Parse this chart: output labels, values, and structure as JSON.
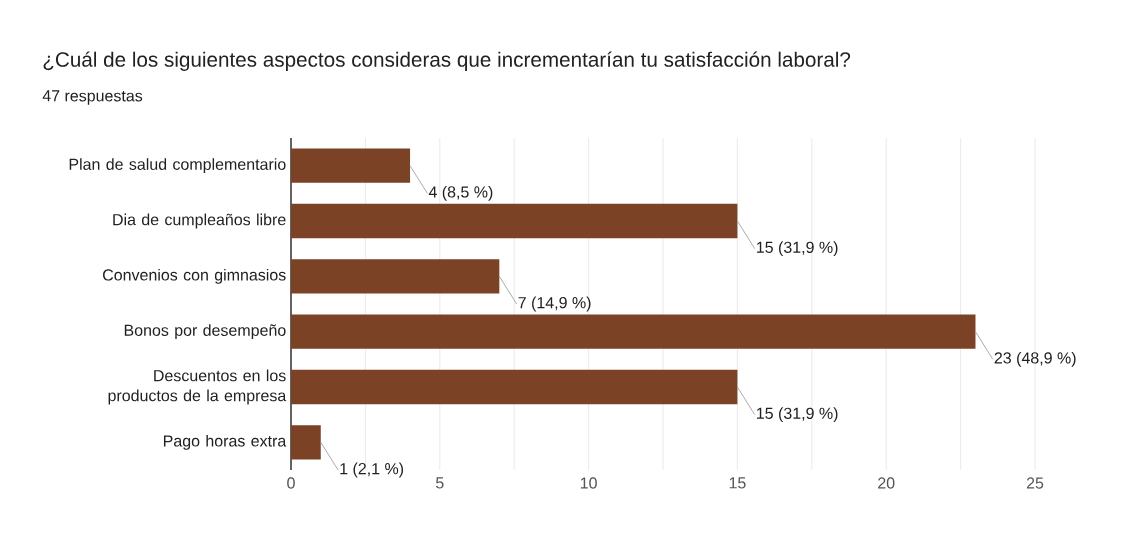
{
  "chart_data": {
    "type": "bar",
    "orientation": "horizontal",
    "title": "¿Cuál de los siguientes aspectos consideras que incrementarían tu satisfacción laboral?",
    "subtitle": "47 respuestas",
    "categories": [
      "Plan de salud complementario",
      "Dia de cumpleaños libre",
      "Convenios con gimnasios",
      "Bonos por desempeño",
      "Descuentos en los productos de la empresa",
      "Pago horas extra"
    ],
    "values": [
      4,
      15,
      7,
      23,
      15,
      1
    ],
    "color": "#7b4226",
    "value_labels": [
      "4 (8,5 %)",
      "15 (31,9 %)",
      "7 (14,9 %)",
      "23 (48,9 %)",
      "15 (31,9 %)",
      "1 (2,1 %)"
    ],
    "xlim": [
      0,
      25
    ],
    "xticks": [
      0,
      {
        "value": 2.5,
        "label": null
      },
      5,
      {
        "value": 7.5,
        "label": null
      },
      10,
      {
        "value": 12.5,
        "label": null
      },
      15,
      {
        "value": 17.5,
        "label": null
      },
      20,
      {
        "value": 22.5,
        "label": null
      },
      25
    ],
    "grid": "x"
  }
}
